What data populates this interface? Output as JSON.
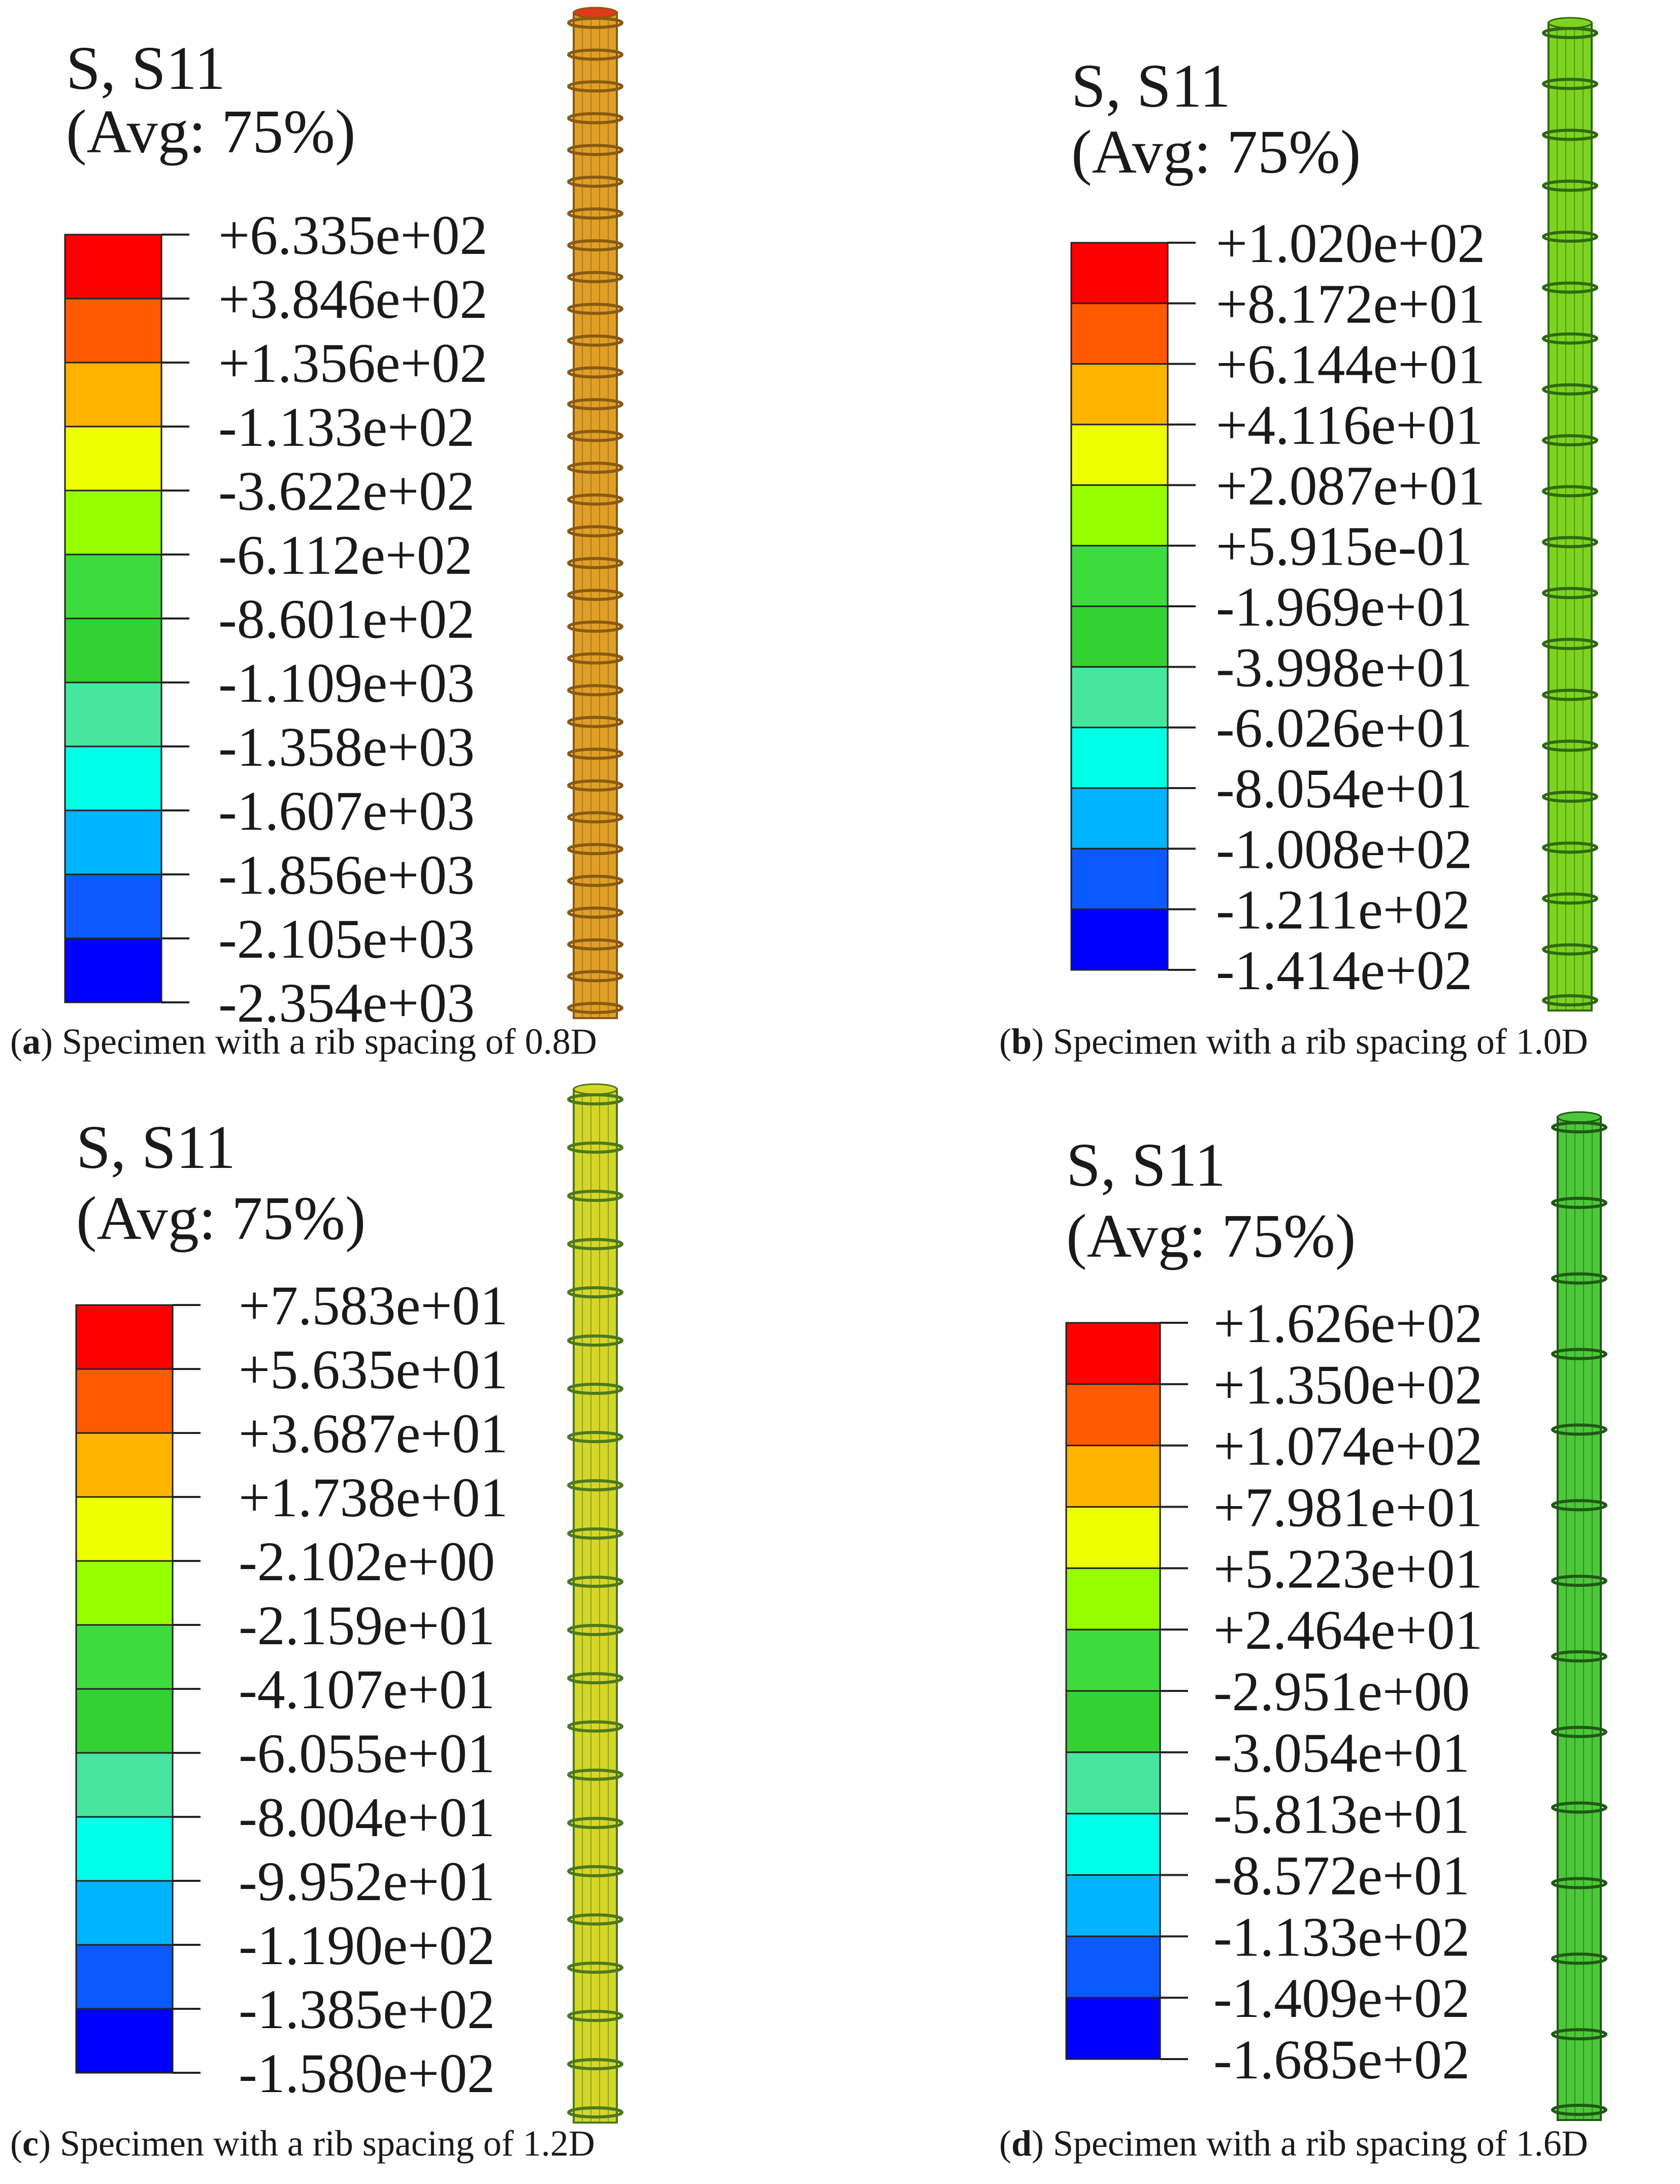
{
  "colormap": [
    "#ff0000",
    "#ff5a00",
    "#ffb400",
    "#eeff00",
    "#96ff00",
    "#3cdc3c",
    "#32d232",
    "#46e6a0",
    "#00ffe6",
    "#00b4ff",
    "#0a5aff",
    "#0000ff"
  ],
  "panels": [
    {
      "id": "a",
      "title_line1": "S, S11",
      "title_line2": "(Avg: 75%)",
      "labels": [
        "+6.335e+02",
        "+3.846e+02",
        "+1.356e+02",
        "-1.133e+02",
        "-3.622e+02",
        "-6.112e+02",
        "-8.601e+02",
        "-1.109e+03",
        "-1.358e+03",
        "-1.607e+03",
        "-1.856e+03",
        "-2.105e+03",
        "-2.354e+03"
      ],
      "caption_letter": "a",
      "caption_text": "Specimen with a rib spacing of 0.8D",
      "bar_color": "#e0a028",
      "bar_dark": "#8a5a10"
    },
    {
      "id": "b",
      "title_line1": "S, S11",
      "title_line2": "(Avg: 75%)",
      "labels": [
        "+1.020e+02",
        "+8.172e+01",
        "+6.144e+01",
        "+4.116e+01",
        "+2.087e+01",
        "+5.915e-01",
        "-1.969e+01",
        "-3.998e+01",
        "-6.026e+01",
        "-8.054e+01",
        "-1.008e+02",
        "-1.211e+02",
        "-1.414e+02"
      ],
      "caption_letter": "b",
      "caption_text": "Specimen with a rib spacing of 1.0D",
      "bar_color": "#7ed321",
      "bar_dark": "#2f6a10"
    },
    {
      "id": "c",
      "title_line1": "S, S11",
      "title_line2": "(Avg: 75%)",
      "labels": [
        "+7.583e+01",
        "+5.635e+01",
        "+3.687e+01",
        "+1.738e+01",
        "-2.102e+00",
        "-2.159e+01",
        "-4.107e+01",
        "-6.055e+01",
        "-8.004e+01",
        "-9.952e+01",
        "-1.190e+02",
        "-1.385e+02",
        "-1.580e+02"
      ],
      "caption_letter": "c",
      "caption_text": "Specimen with a rib spacing of 1.2D",
      "bar_color": "#d6d62a",
      "bar_dark": "#4d7a1a"
    },
    {
      "id": "d",
      "title_line1": "S, S11",
      "title_line2": "(Avg: 75%)",
      "labels": [
        "+1.626e+02",
        "+1.350e+02",
        "+1.074e+02",
        "+7.981e+01",
        "+5.223e+01",
        "+2.464e+01",
        "-2.951e+00",
        "-3.054e+01",
        "-5.813e+01",
        "-8.572e+01",
        "-1.133e+02",
        "-1.409e+02",
        "-1.685e+02"
      ],
      "caption_letter": "d",
      "caption_text": "Specimen with a rib spacing of 1.6D",
      "bar_color": "#4cc83a",
      "bar_dark": "#1f5a14"
    }
  ]
}
